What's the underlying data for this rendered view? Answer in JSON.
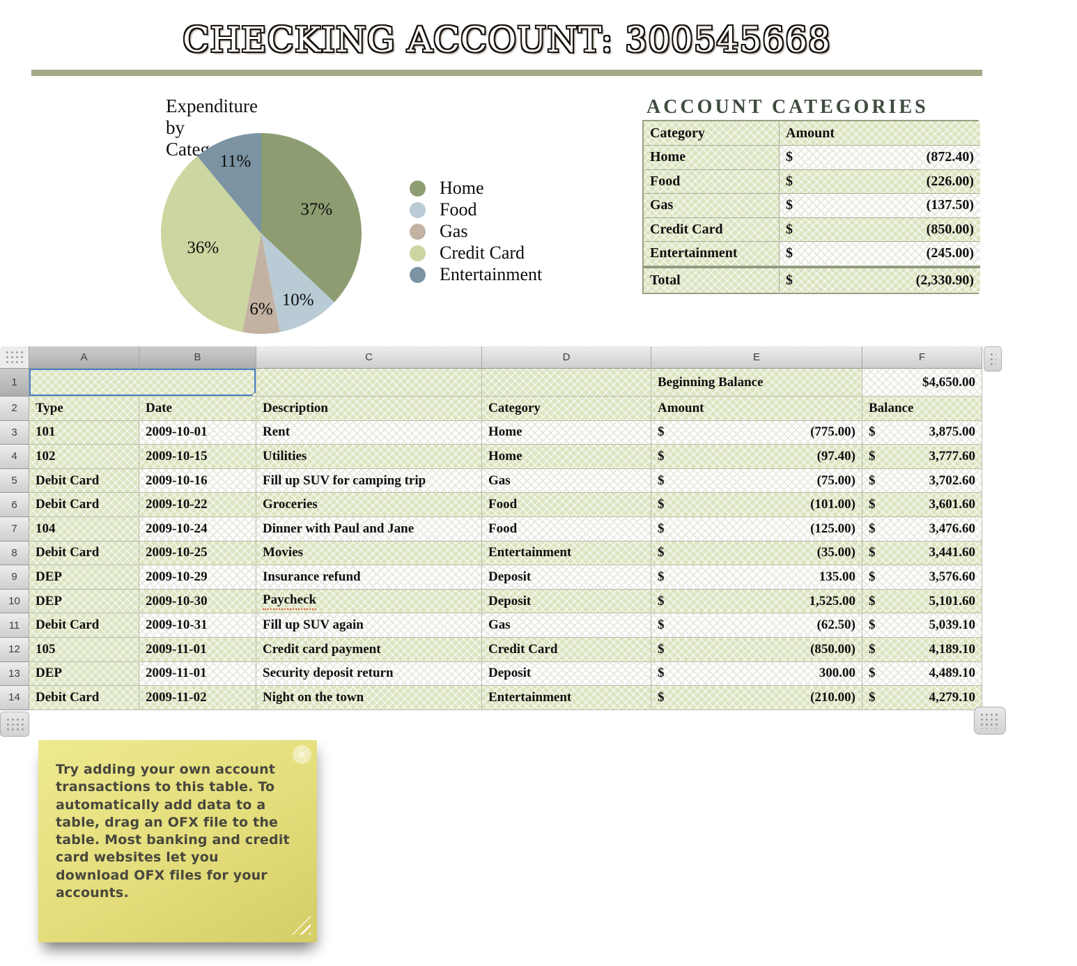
{
  "title": "CHECKING ACCOUNT: 300545668",
  "chart_data": {
    "type": "pie",
    "title": "Expenditure by Category",
    "labels": [
      "Home",
      "Food",
      "Gas",
      "Credit Card",
      "Entertainment"
    ],
    "values": [
      37,
      10,
      6,
      36,
      11
    ],
    "value_labels": [
      "37%",
      "10%",
      "6%",
      "36%",
      "11%"
    ],
    "colors": [
      "#8d9d71",
      "#b9cbd5",
      "#c3b2a2",
      "#cbd6a0",
      "#7b93a3"
    ],
    "legend_position": "right"
  },
  "categories_panel": {
    "title": "ACCOUNT CATEGORIES",
    "columns": [
      "Category",
      "Amount"
    ],
    "currency": "$",
    "rows": [
      {
        "category": "Home",
        "amount": "(872.40)"
      },
      {
        "category": "Food",
        "amount": "(226.00)"
      },
      {
        "category": "Gas",
        "amount": "(137.50)"
      },
      {
        "category": "Credit Card",
        "amount": "(850.00)"
      },
      {
        "category": "Entertainment",
        "amount": "(245.00)"
      }
    ],
    "total": {
      "label": "Total",
      "amount": "(2,330.90)"
    }
  },
  "spreadsheet": {
    "column_letters": [
      "A",
      "B",
      "C",
      "D",
      "E",
      "F"
    ],
    "selected_columns": [
      "A",
      "B"
    ],
    "selected_row": 1,
    "beginning_balance_label": "Beginning Balance",
    "beginning_balance_value": "$4,650.00",
    "headers": [
      "Type",
      "Date",
      "Description",
      "Category",
      "Amount",
      "Balance"
    ],
    "currency": "$",
    "transactions": [
      {
        "row": 3,
        "type": "101",
        "date": "2009-10-01",
        "description": "Rent",
        "category": "Home",
        "amount": "(775.00)",
        "balance": "3,875.00"
      },
      {
        "row": 4,
        "type": "102",
        "date": "2009-10-15",
        "description": "Utilities",
        "category": "Home",
        "amount": "(97.40)",
        "balance": "3,777.60"
      },
      {
        "row": 5,
        "type": "Debit Card",
        "date": "2009-10-16",
        "description": "Fill up SUV for camping trip",
        "category": "Gas",
        "amount": "(75.00)",
        "balance": "3,702.60"
      },
      {
        "row": 6,
        "type": "Debit Card",
        "date": "2009-10-22",
        "description": "Groceries",
        "category": "Food",
        "amount": "(101.00)",
        "balance": "3,601.60"
      },
      {
        "row": 7,
        "type": "104",
        "date": "2009-10-24",
        "description": "Dinner with Paul and Jane",
        "category": "Food",
        "amount": "(125.00)",
        "balance": "3,476.60"
      },
      {
        "row": 8,
        "type": "Debit Card",
        "date": "2009-10-25",
        "description": "Movies",
        "category": "Entertainment",
        "amount": "(35.00)",
        "balance": "3,441.60"
      },
      {
        "row": 9,
        "type": "DEP",
        "date": "2009-10-29",
        "description": "Insurance refund",
        "category": "Deposit",
        "amount": "135.00",
        "balance": "3,576.60"
      },
      {
        "row": 10,
        "type": "DEP",
        "date": "2009-10-30",
        "description": "Paycheck",
        "category": "Deposit",
        "amount": "1,525.00",
        "balance": "5,101.60",
        "misspelled": true
      },
      {
        "row": 11,
        "type": "Debit Card",
        "date": "2009-10-31",
        "description": "Fill up SUV again",
        "category": "Gas",
        "amount": "(62.50)",
        "balance": "5,039.10"
      },
      {
        "row": 12,
        "type": "105",
        "date": "2009-11-01",
        "description": "Credit card payment",
        "category": "Credit Card",
        "amount": "(850.00)",
        "balance": "4,189.10"
      },
      {
        "row": 13,
        "type": "DEP",
        "date": "2009-11-01",
        "description": "Security deposit return",
        "category": "Deposit",
        "amount": "300.00",
        "balance": "4,489.10"
      },
      {
        "row": 14,
        "type": "Debit Card",
        "date": "2009-11-02",
        "description": "Night on the town",
        "category": "Entertainment",
        "amount": "(210.00)",
        "balance": "4,279.10"
      }
    ]
  },
  "sticky_note": {
    "text": "Try adding your own account transactions to this table. To automatically add data to a table, drag an OFX file to the table. Most banking and credit card websites let you download OFX files for your accounts.",
    "close_icon": "✕"
  }
}
